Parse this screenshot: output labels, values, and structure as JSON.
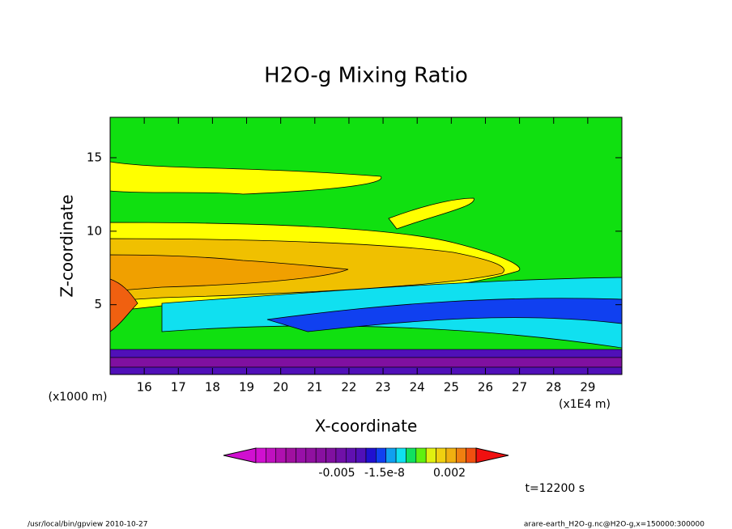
{
  "chart_data": {
    "type": "contour",
    "title": "H2O-g Mixing Ratio",
    "x_label": "X-coordinate",
    "y_label": "Z-coordinate",
    "x_unit": "(x1E4 m)",
    "y_unit": "(x1000 m)",
    "xlim": [
      15,
      30
    ],
    "xticks": [
      16,
      17,
      18,
      19,
      20,
      21,
      22,
      23,
      24,
      25,
      26,
      27,
      28,
      29
    ],
    "ylim": [
      0.25,
      17.75
    ],
    "yticks": [
      5,
      10,
      15
    ],
    "colorbar": {
      "colors": [
        "#d010d0",
        "#c010c0",
        "#b010b0",
        "#a010a0",
        "#9810a8",
        "#9010a0",
        "#8810a0",
        "#8010a0",
        "#7010a8",
        "#6010b0",
        "#5010b8",
        "#2010d0",
        "#1040f0",
        "#10a0f0",
        "#10e0f0",
        "#10e060",
        "#60f010",
        "#e0f010",
        "#f0d010",
        "#f0b010",
        "#f08010",
        "#f05010"
      ],
      "over_color": "#f01010",
      "ticks": [
        {
          "value": -0.005,
          "label": "-0.005"
        },
        {
          "value": -1.5e-08,
          "label": "-1.5e-8"
        },
        {
          "value": 0.002,
          "label": "0.002"
        }
      ]
    },
    "annotation": "t=12200 s",
    "footer_left": "/usr/local/bin/gpview  2010-10-27",
    "footer_right": "arare-earth_H2O-g.nc@H2O-g,x=150000:300000"
  }
}
